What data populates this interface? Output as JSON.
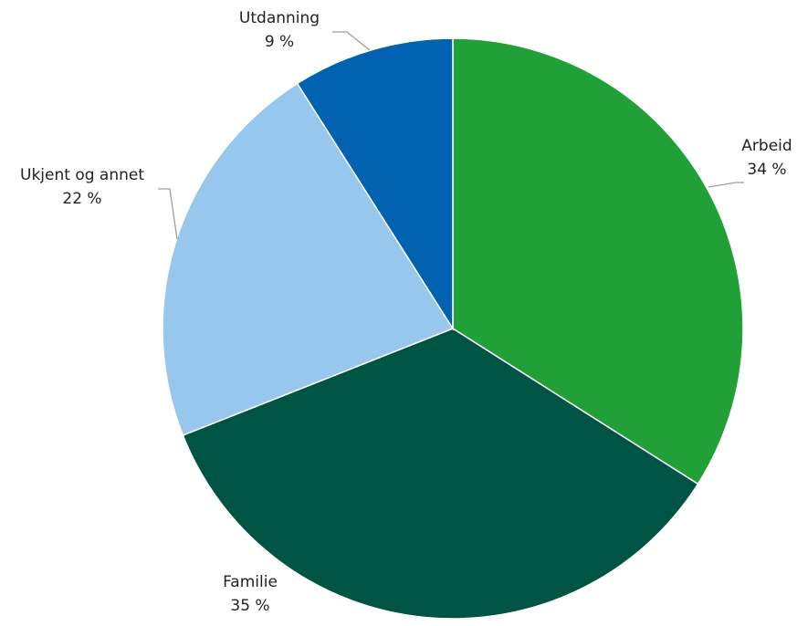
{
  "chart_data": {
    "type": "pie",
    "start_angle": "12 o'clock",
    "direction": "clockwise",
    "slices": [
      {
        "label": "Arbeid",
        "value": 34,
        "value_label": "34 %",
        "color": "#21A038"
      },
      {
        "label": "Familie",
        "value": 35,
        "value_label": "35 %",
        "color": "#005444"
      },
      {
        "label": "Ukjent og annet",
        "value": 22,
        "value_label": "22 %",
        "color": "#98C7ED"
      },
      {
        "label": "Utdanning",
        "value": 9,
        "value_label": "9 %",
        "color": "#0062B1"
      }
    ],
    "leader_line_color": "#9e9e9e"
  }
}
